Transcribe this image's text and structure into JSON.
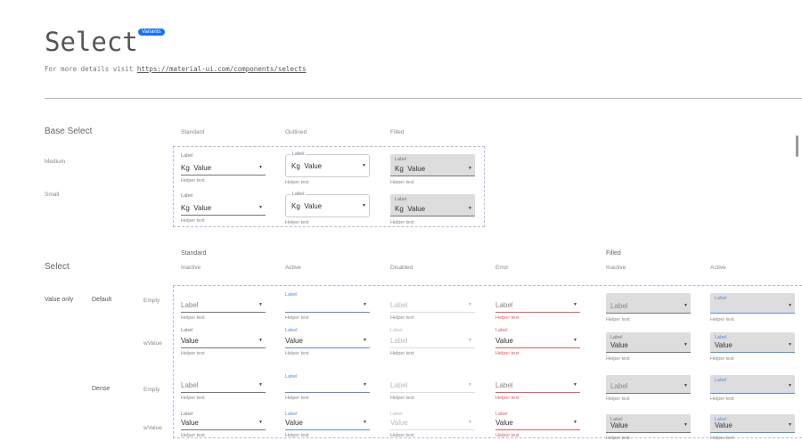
{
  "header": {
    "title": "Select",
    "badge": "Variants",
    "subtitle_prefix": "For more details visit",
    "link": "https://material-ui.com/components/selects"
  },
  "base": {
    "title": "Base Select",
    "columns": [
      "Standard",
      "Outlined",
      "Filled"
    ],
    "rows": [
      "Medium",
      "Small"
    ],
    "label": "Label",
    "adornment": "Kg",
    "value": "Value",
    "helper": "Helper text"
  },
  "select": {
    "title": "Select",
    "group_standard": "Standard",
    "group_filled": "Filled",
    "columns": [
      "Inactive",
      "Active",
      "Disabled",
      "Error",
      "Inactive",
      "Active"
    ],
    "section": "Value only",
    "sizes": [
      "Default",
      "Dense"
    ],
    "states": [
      "Empty",
      "wValue"
    ],
    "label": "Label",
    "value": "Value",
    "helper": "Helper text"
  },
  "colors": {
    "accent": "#5b8fd6",
    "error": "#e06060",
    "filled_bg": "#dddddd",
    "badge": "#1a73e8"
  }
}
